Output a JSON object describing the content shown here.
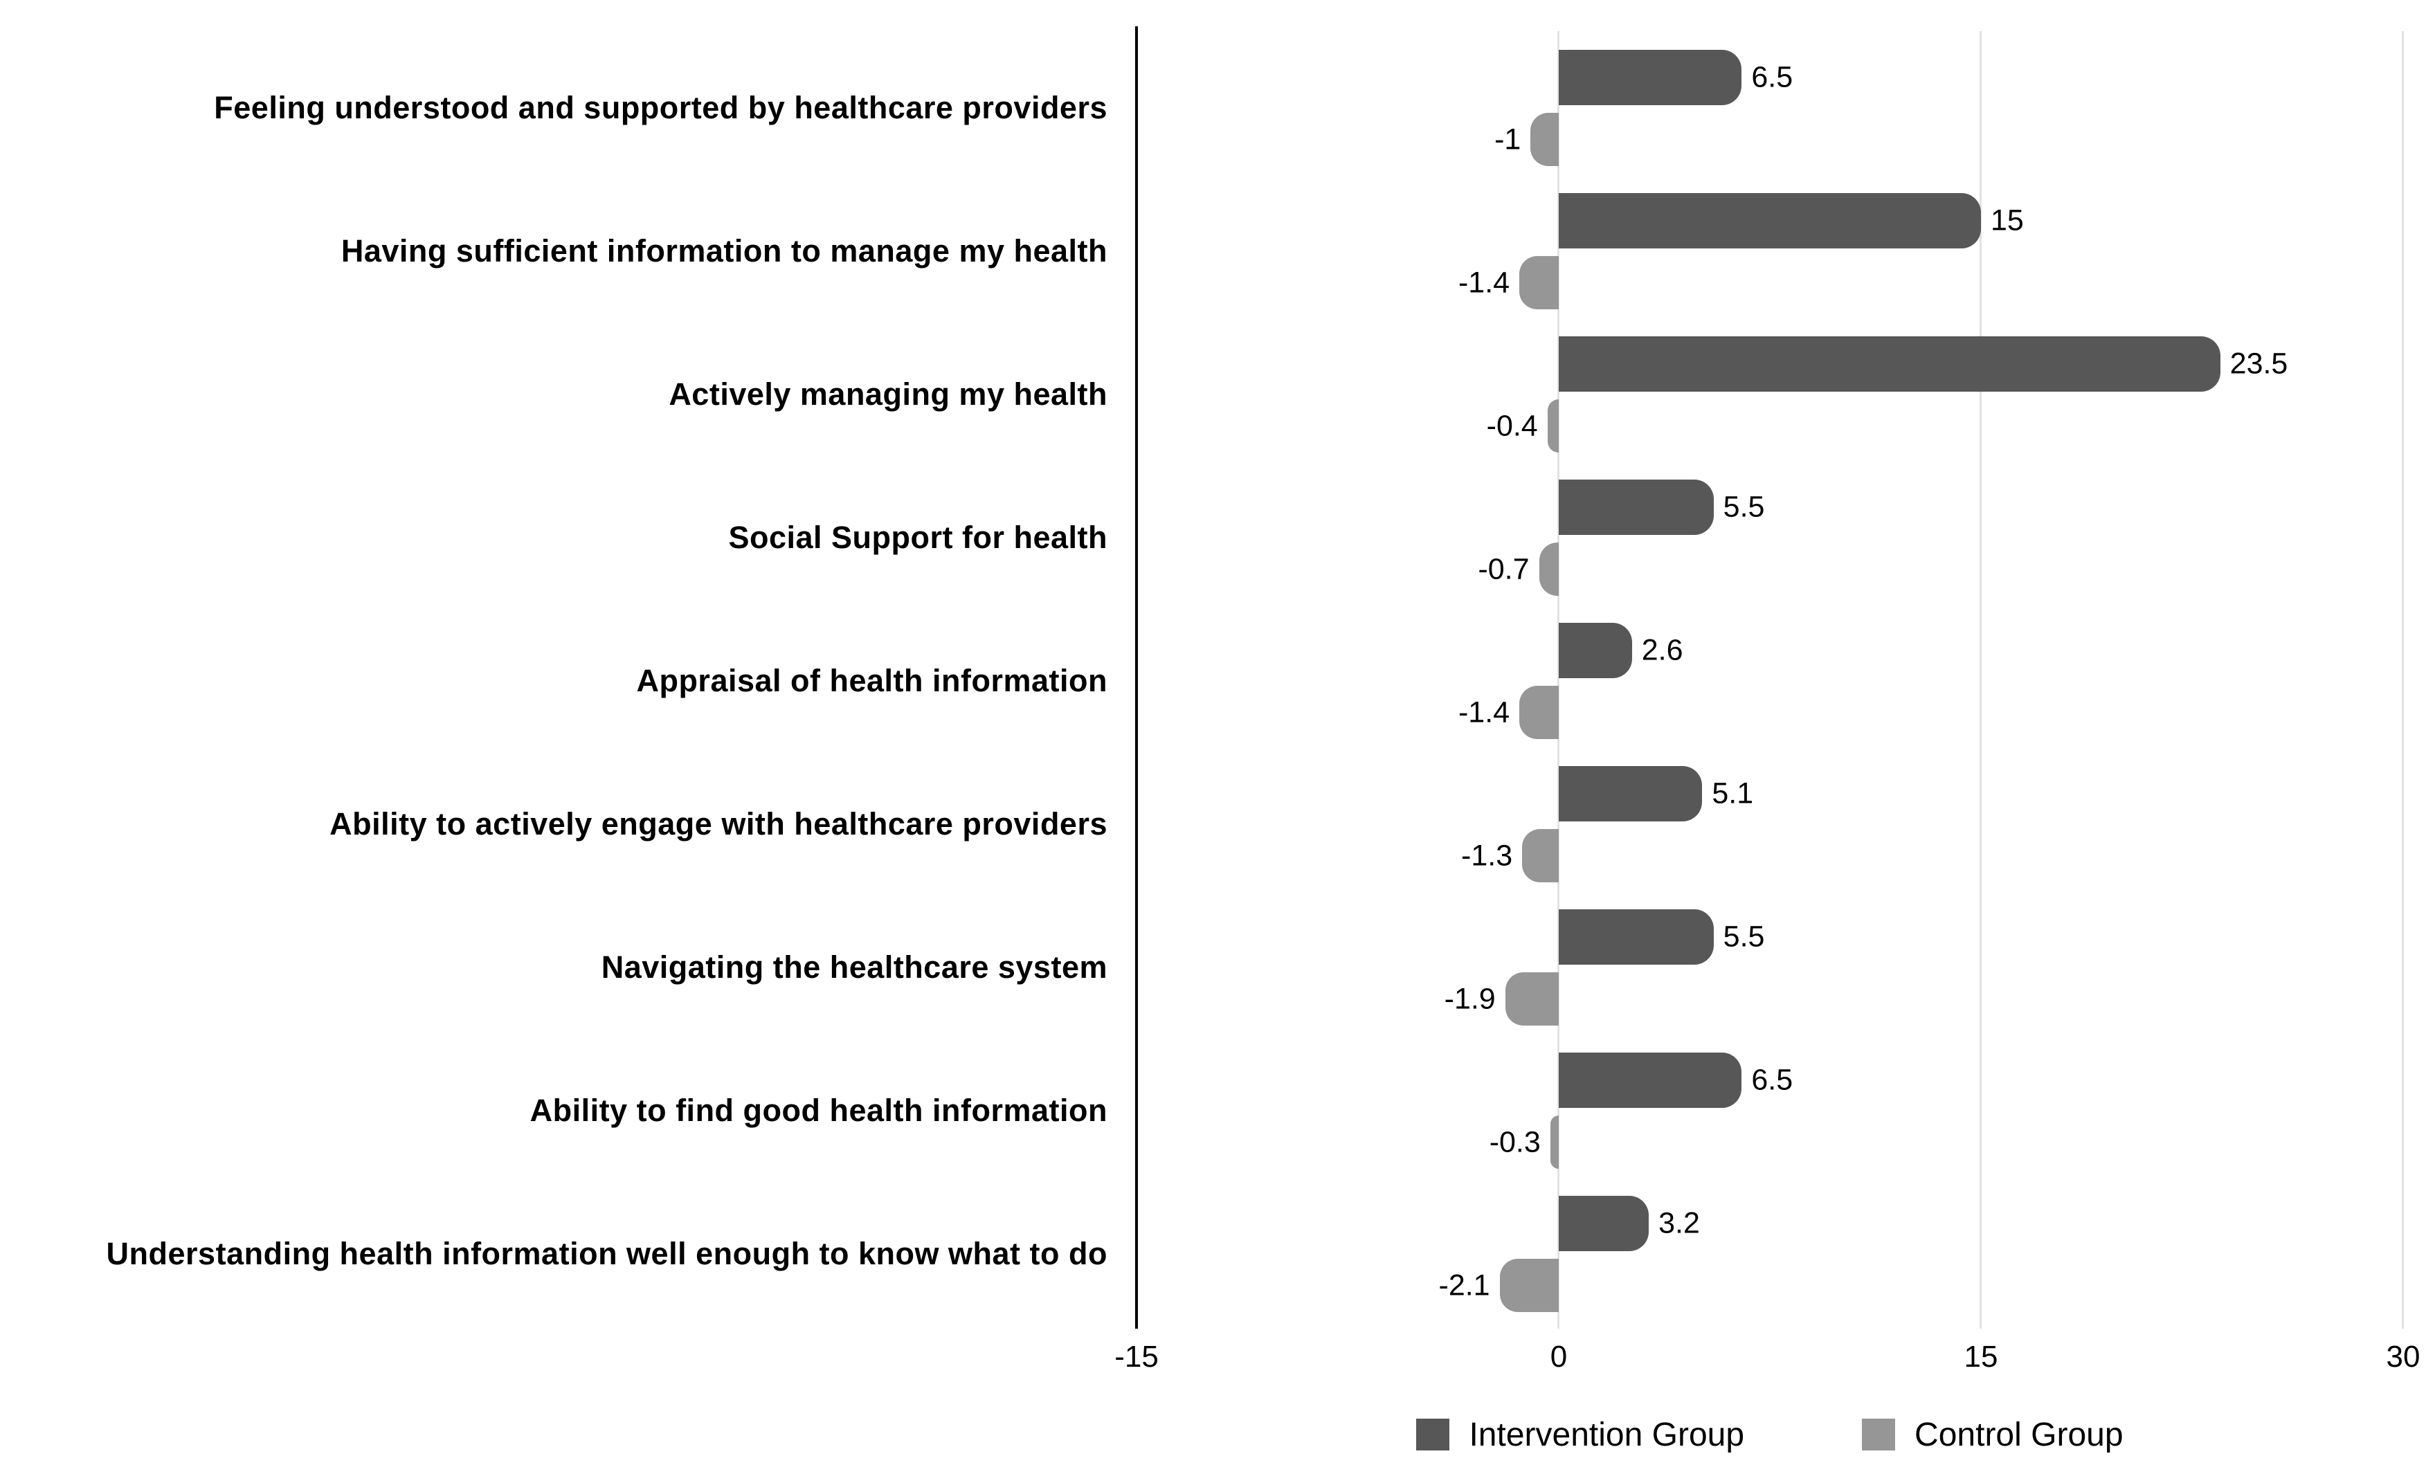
{
  "chart_data": {
    "type": "bar",
    "orientation": "horizontal",
    "title": "",
    "categories": [
      "Feeling understood and supported by healthcare providers",
      "Having sufficient information to manage my health",
      "Actively managing my health",
      "Social Support for health",
      "Appraisal of health information",
      "Ability to actively engage with healthcare providers",
      "Navigating the healthcare system",
      "Ability to find good health information",
      "Understanding health information well enough to know what to do"
    ],
    "series": [
      {
        "name": "Intervention Group",
        "color": "#575757",
        "values": [
          6.5,
          15,
          23.5,
          5.5,
          2.6,
          5.1,
          5.5,
          6.5,
          3.2
        ],
        "labels": [
          "6.5",
          "15",
          "23.5",
          "5.5",
          "2.6",
          "5.1",
          "5.5",
          "6.5",
          "3.2"
        ]
      },
      {
        "name": "Control Group",
        "color": "#969696",
        "values": [
          -1,
          -1.4,
          -0.4,
          -0.7,
          -1.4,
          -1.3,
          -1.9,
          -0.3,
          -2.1
        ],
        "labels": [
          "-1",
          "-1.4",
          "-0.4",
          "-0.7",
          "-1.4",
          "-1.3",
          "-1.9",
          "-0.3",
          "-2.1"
        ]
      }
    ],
    "xlim": [
      -15,
      30
    ],
    "x_ticks": [
      {
        "label": "-15",
        "value": -15
      },
      {
        "label": "0",
        "value": 0
      },
      {
        "label": "15",
        "value": 15
      },
      {
        "label": "30",
        "value": 30
      }
    ],
    "grid": true,
    "legend_position": "bottom"
  },
  "colors": {
    "background": "#ffffff",
    "gridline": "#e2e2e2",
    "axis_line": "#000000",
    "text": "#000000"
  }
}
